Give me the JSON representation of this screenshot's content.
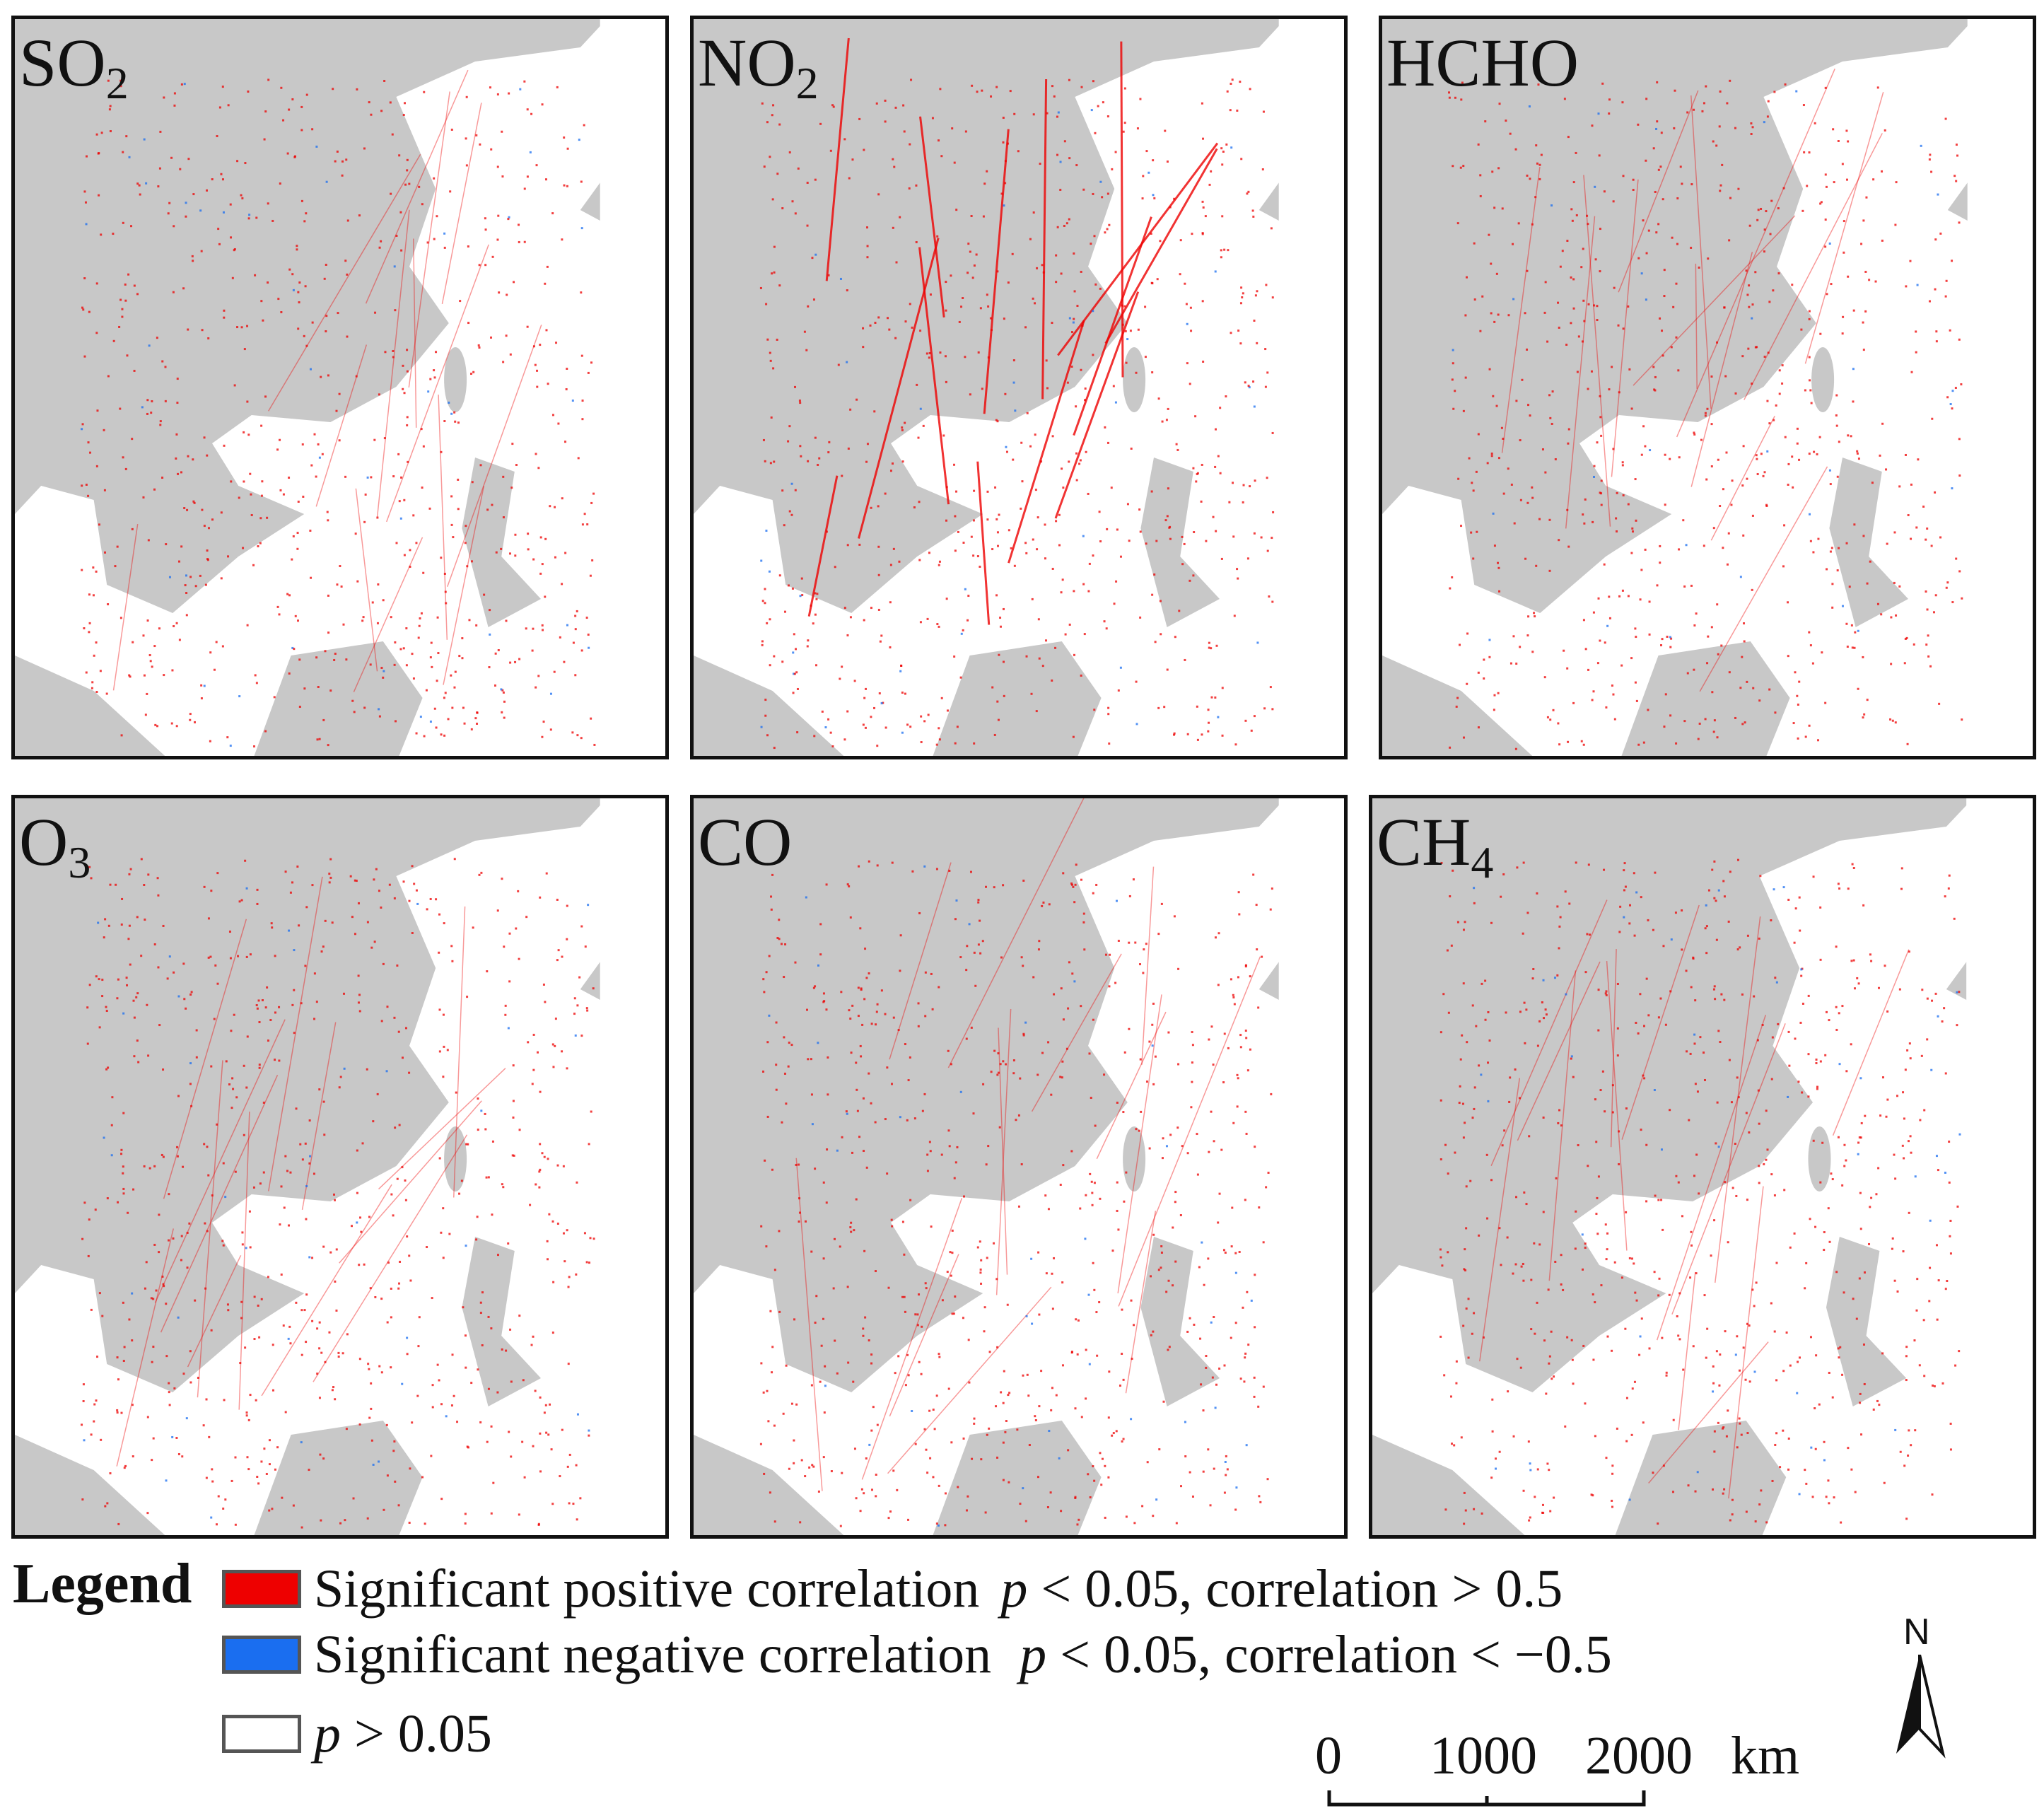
{
  "figure": {
    "panels": [
      {
        "id": "so2",
        "name": "SO",
        "sub": "2"
      },
      {
        "id": "no2",
        "name": "NO",
        "sub": "2"
      },
      {
        "id": "hcho",
        "name": "HCHO",
        "sub": ""
      },
      {
        "id": "o3",
        "name": "O",
        "sub": "3"
      },
      {
        "id": "co",
        "name": "CO",
        "sub": ""
      },
      {
        "id": "ch4",
        "name": "CH",
        "sub": "4"
      }
    ]
  },
  "legend": {
    "title": "Legend",
    "items": [
      {
        "color": "#ee0000",
        "label": "Significant positive correlation",
        "condition_p": "p",
        "condition_rest": " < 0.05, correlation > 0.5"
      },
      {
        "color": "#1a6ef0",
        "label": "Significant negative correlation",
        "condition_p": "p",
        "condition_rest": " < 0.05, correlation < −0.5"
      },
      {
        "color": "#ffffff",
        "label": "",
        "condition_p": "p",
        "condition_rest": " > 0.05"
      }
    ]
  },
  "scale": {
    "labels": [
      "0",
      "1000",
      "2000"
    ],
    "unit": "km"
  },
  "north": {
    "label": "N"
  },
  "colors": {
    "land": "#c8c8c8",
    "sea": "#ffffff",
    "positive": "#ee0000",
    "negative": "#1a6ef0"
  }
}
